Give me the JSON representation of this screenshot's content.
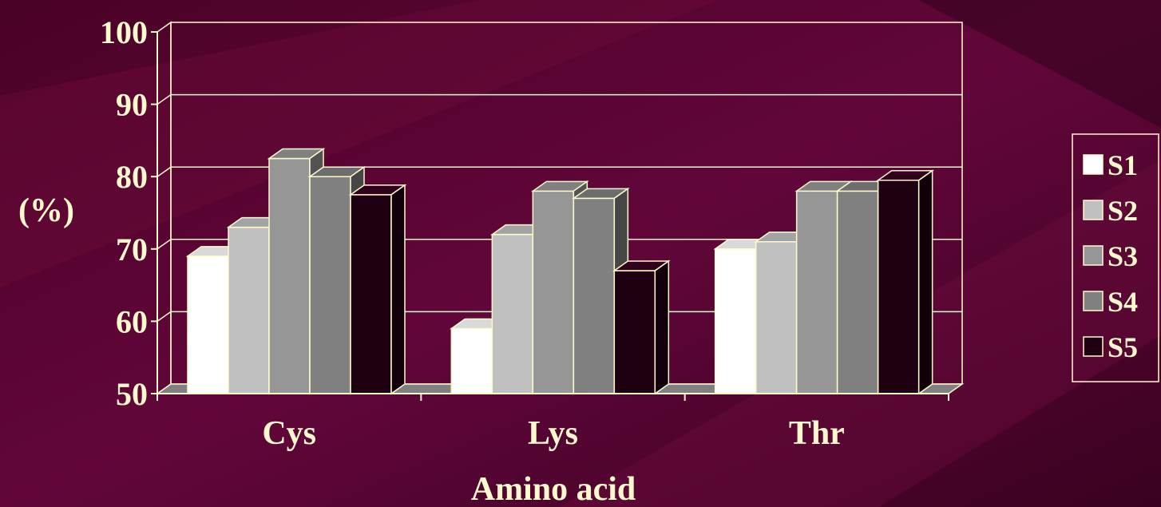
{
  "colors": {
    "background": "#5e0430",
    "background_band": "#6e0a3c",
    "background_dark": "#3a0220",
    "axis_line": "#fffacd",
    "text": "#fffacd"
  },
  "chart_data": {
    "type": "bar",
    "style": "3d-clustered",
    "categories": [
      "Cys",
      "Lys",
      "Thr"
    ],
    "series": [
      {
        "name": "S1",
        "values": [
          69,
          59,
          70
        ],
        "color": "#ffffff"
      },
      {
        "name": "S2",
        "values": [
          73,
          72,
          71
        ],
        "color": "#c0c0c0"
      },
      {
        "name": "S3",
        "values": [
          82.5,
          78,
          78
        ],
        "color": "#969696"
      },
      {
        "name": "S4",
        "values": [
          80,
          77,
          78
        ],
        "color": "#808080"
      },
      {
        "name": "S5",
        "values": [
          77.5,
          67,
          79.5
        ],
        "color": "#1e0010"
      }
    ],
    "title": "",
    "xlabel": "Amino acid",
    "ylabel": "(%)",
    "ylim": [
      50,
      100
    ],
    "yticks": [
      "50",
      "60",
      "70",
      "80",
      "90",
      "100"
    ],
    "grid": true,
    "legend_position": "right"
  }
}
